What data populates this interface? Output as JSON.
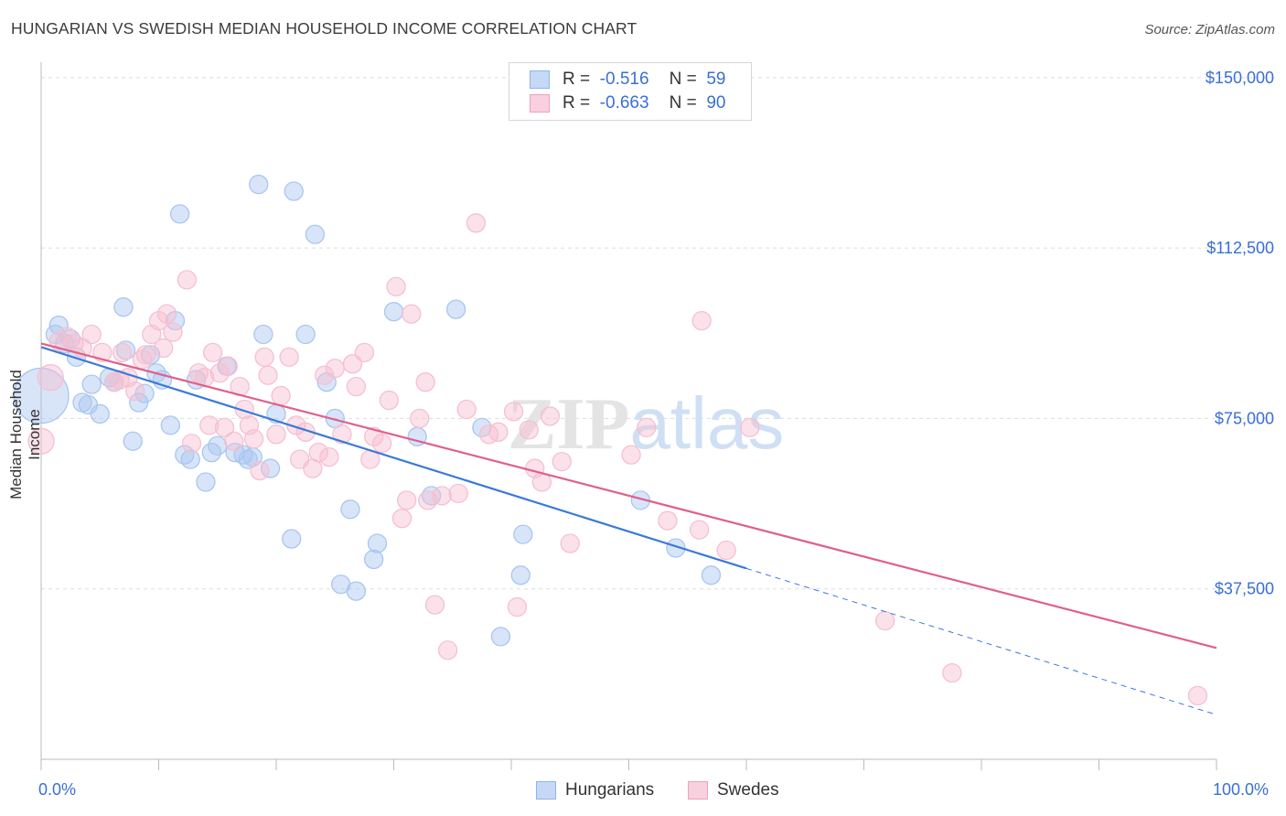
{
  "title": "HUNGARIAN VS SWEDISH MEDIAN HOUSEHOLD INCOME CORRELATION CHART",
  "source": "Source: ZipAtlas.com",
  "watermark": "ZIPatlas",
  "legend_top": [
    {
      "r_label": "R =",
      "r_value": "-0.516",
      "n_label": "N =",
      "n_value": "59",
      "color": "#8fb4ea",
      "fill": "#c5d9f7"
    },
    {
      "r_label": "R =",
      "r_value": "-0.663",
      "n_label": "N =",
      "n_value": "90",
      "color": "#f0a0bb",
      "fill": "#f9d0de"
    }
  ],
  "legend_bottom": [
    "Hungarians",
    "Swedes"
  ],
  "chart_data": {
    "type": "scatter",
    "xlabel": "",
    "ylabel": "Median Household Income",
    "xlim": [
      0,
      100
    ],
    "ylim": [
      0,
      155000
    ],
    "x_ticks": [
      "0.0%",
      "100.0%"
    ],
    "y_ticks": [
      {
        "value": 150000,
        "label": "$150,000"
      },
      {
        "value": 112500,
        "label": "$112,500"
      },
      {
        "value": 75000,
        "label": "$75,000"
      },
      {
        "value": 37500,
        "label": "$37,500"
      }
    ],
    "grid": true,
    "series": [
      {
        "name": "Hungarians",
        "color": "#3a7ad8",
        "fill": "#a9c6f0",
        "trend": {
          "x0": 0,
          "y0": 90700,
          "x1": 60,
          "y1": 42000,
          "dash_to_x": 100,
          "dash_to_y": 9800
        },
        "points": [
          [
            0,
            80000,
            30
          ],
          [
            1.2,
            93500,
            10
          ],
          [
            2,
            91500,
            10
          ],
          [
            1.5,
            95500,
            10
          ],
          [
            2.5,
            92500,
            10
          ],
          [
            3,
            88500,
            10
          ],
          [
            3.5,
            78500,
            10
          ],
          [
            4,
            78000,
            10
          ],
          [
            4.3,
            82500,
            10
          ],
          [
            5,
            76000,
            10
          ],
          [
            5.8,
            84000,
            10
          ],
          [
            6.2,
            83000,
            10
          ],
          [
            7,
            99500,
            10
          ],
          [
            7.2,
            90000,
            10
          ],
          [
            7.8,
            70000,
            10
          ],
          [
            8.3,
            78500,
            10
          ],
          [
            8.8,
            80500,
            10
          ],
          [
            9.3,
            89000,
            10
          ],
          [
            9.8,
            85000,
            10
          ],
          [
            10.3,
            83500,
            10
          ],
          [
            11,
            73500,
            10
          ],
          [
            11.4,
            96500,
            10
          ],
          [
            11.8,
            120000,
            10
          ],
          [
            12.2,
            67000,
            10
          ],
          [
            12.7,
            66000,
            10
          ],
          [
            13.2,
            83500,
            10
          ],
          [
            14,
            61000,
            10
          ],
          [
            14.5,
            67500,
            10
          ],
          [
            15,
            69000,
            10
          ],
          [
            15.8,
            86500,
            10
          ],
          [
            16.5,
            67500,
            10
          ],
          [
            17.2,
            67000,
            10
          ],
          [
            17.6,
            66000,
            10
          ],
          [
            18,
            66500,
            10
          ],
          [
            18.5,
            126500,
            10
          ],
          [
            18.9,
            93500,
            10
          ],
          [
            19.5,
            64000,
            10
          ],
          [
            20,
            76000,
            10
          ],
          [
            21.3,
            48500,
            10
          ],
          [
            21.5,
            125000,
            10
          ],
          [
            22.5,
            93500,
            10
          ],
          [
            23.3,
            115500,
            10
          ],
          [
            24.3,
            83000,
            10
          ],
          [
            25,
            75000,
            10
          ],
          [
            25.5,
            38500,
            10
          ],
          [
            26.3,
            55000,
            10
          ],
          [
            26.8,
            37000,
            10
          ],
          [
            28.3,
            44000,
            10
          ],
          [
            28.6,
            47500,
            10
          ],
          [
            30,
            98500,
            10
          ],
          [
            32,
            71000,
            10
          ],
          [
            33.2,
            58000,
            10
          ],
          [
            35.3,
            99000,
            10
          ],
          [
            37.5,
            73000,
            10
          ],
          [
            39.1,
            27000,
            10
          ],
          [
            41,
            49500,
            10
          ],
          [
            40.8,
            40500,
            10
          ],
          [
            51,
            57000,
            10
          ],
          [
            54,
            46500,
            10
          ],
          [
            57,
            40500,
            10
          ]
        ]
      },
      {
        "name": "Swedes",
        "color": "#e0608a",
        "fill": "#f6bfd1",
        "trend": {
          "x0": 0,
          "y0": 91500,
          "x1": 100,
          "y1": 24500
        },
        "points": [
          [
            0,
            70000,
            14
          ],
          [
            0.8,
            84000,
            14
          ],
          [
            1.5,
            92000,
            10
          ],
          [
            2.2,
            93000,
            10
          ],
          [
            2.8,
            91500,
            10
          ],
          [
            3.5,
            90500,
            10
          ],
          [
            4.3,
            93500,
            10
          ],
          [
            5.2,
            89500,
            10
          ],
          [
            6.2,
            83000,
            10
          ],
          [
            6.7,
            83500,
            10
          ],
          [
            6.9,
            89500,
            10
          ],
          [
            7.4,
            84000,
            10
          ],
          [
            8,
            81000,
            10
          ],
          [
            8.6,
            88000,
            10
          ],
          [
            8.9,
            89000,
            10
          ],
          [
            9.4,
            93500,
            10
          ],
          [
            10,
            96500,
            10
          ],
          [
            10.4,
            90500,
            10
          ],
          [
            10.7,
            98000,
            10
          ],
          [
            11.2,
            94000,
            10
          ],
          [
            12.4,
            105500,
            10
          ],
          [
            12.8,
            69500,
            10
          ],
          [
            13.4,
            85000,
            10
          ],
          [
            13.9,
            84000,
            10
          ],
          [
            14.3,
            73500,
            10
          ],
          [
            14.6,
            89500,
            10
          ],
          [
            15.2,
            85000,
            10
          ],
          [
            15.6,
            73000,
            10
          ],
          [
            15.9,
            86500,
            10
          ],
          [
            16.4,
            70000,
            10
          ],
          [
            16.9,
            82000,
            10
          ],
          [
            17.3,
            77000,
            10
          ],
          [
            17.7,
            73500,
            10
          ],
          [
            18.1,
            70500,
            10
          ],
          [
            18.6,
            63500,
            10
          ],
          [
            19,
            88500,
            10
          ],
          [
            19.3,
            84500,
            10
          ],
          [
            20,
            71500,
            10
          ],
          [
            20.4,
            80000,
            10
          ],
          [
            21.1,
            88500,
            10
          ],
          [
            21.7,
            73500,
            10
          ],
          [
            22,
            66000,
            10
          ],
          [
            22.5,
            72000,
            10
          ],
          [
            23.1,
            64000,
            10
          ],
          [
            23.6,
            67500,
            10
          ],
          [
            24.1,
            84500,
            10
          ],
          [
            24.5,
            66500,
            10
          ],
          [
            25,
            86000,
            10
          ],
          [
            25.6,
            71500,
            10
          ],
          [
            26.5,
            87000,
            10
          ],
          [
            26.8,
            82000,
            10
          ],
          [
            27.5,
            89500,
            10
          ],
          [
            28,
            66000,
            10
          ],
          [
            28.3,
            71000,
            10
          ],
          [
            29,
            69500,
            10
          ],
          [
            29.6,
            79000,
            10
          ],
          [
            30.2,
            104000,
            10
          ],
          [
            30.7,
            53000,
            10
          ],
          [
            31.1,
            57000,
            10
          ],
          [
            31.5,
            98000,
            10
          ],
          [
            32.2,
            75000,
            10
          ],
          [
            32.7,
            83000,
            10
          ],
          [
            32.9,
            57000,
            10
          ],
          [
            33.5,
            34000,
            10
          ],
          [
            34.1,
            58000,
            10
          ],
          [
            34.6,
            24000,
            10
          ],
          [
            35.5,
            58500,
            10
          ],
          [
            36.2,
            77000,
            10
          ],
          [
            37,
            118000,
            10
          ],
          [
            38.1,
            71500,
            10
          ],
          [
            38.9,
            72000,
            10
          ],
          [
            40.2,
            76500,
            10
          ],
          [
            40.5,
            33500,
            10
          ],
          [
            41.5,
            72500,
            10
          ],
          [
            42,
            64000,
            10
          ],
          [
            42.6,
            61000,
            10
          ],
          [
            43.3,
            75500,
            10
          ],
          [
            44.3,
            65500,
            10
          ],
          [
            45,
            47500,
            10
          ],
          [
            50.2,
            67000,
            10
          ],
          [
            51.5,
            73000,
            10
          ],
          [
            53.3,
            52500,
            10
          ],
          [
            56,
            50500,
            10
          ],
          [
            56.2,
            96500,
            10
          ],
          [
            58.3,
            46000,
            10
          ],
          [
            60.3,
            73000,
            10
          ],
          [
            71.8,
            30500,
            10
          ],
          [
            77.5,
            19000,
            10
          ],
          [
            98.4,
            14000,
            10
          ]
        ]
      }
    ]
  }
}
